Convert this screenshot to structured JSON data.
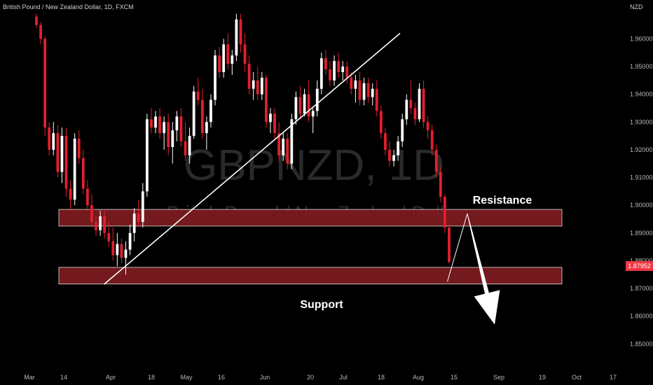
{
  "header": {
    "symbol_line": "British Pound / New Zealand Dollar, 1D, FXCM",
    "currency": "NZD"
  },
  "watermark": {
    "ticker": "GBPNZD, 1D",
    "name": "British Pound / New Zealand Dollar"
  },
  "last_price": "1.87952",
  "colors": {
    "background": "#000000",
    "up_candle": "#ffffff",
    "down_candle": "#e3202d",
    "zone_fill": "#7a1a1f",
    "zone_border": "#e0e0e0",
    "trendline": "#ffffff",
    "axis_text": "#b8b8b8",
    "price_tag": "#f23645"
  },
  "annotations": {
    "resistance_label": "Resistance",
    "support_label": "Support"
  },
  "chart_data": {
    "type": "candlestick",
    "y_axis": {
      "ticks": [
        "1.96000",
        "1.95000",
        "1.94000",
        "1.93000",
        "1.92000",
        "1.91000",
        "1.90000",
        "1.89000",
        "1.88000",
        "1.87000",
        "1.86000",
        "1.85000"
      ],
      "range": [
        1.842,
        1.974
      ]
    },
    "x_axis": {
      "ticks": [
        "Mar",
        "14",
        "Apr",
        "18",
        "May",
        "16",
        "Jun",
        "20",
        "Jul",
        "18",
        "Aug",
        "15",
        "Sep",
        "19",
        "Oct",
        "17"
      ],
      "range_days": [
        "2023-03-01",
        "2023-10-23"
      ]
    },
    "zones": [
      {
        "label": "Resistance",
        "low": 1.8925,
        "high": 1.8985
      },
      {
        "label": "Support",
        "low": 1.8716,
        "high": 1.8776
      }
    ],
    "trendline": {
      "from": [
        "2023-03-31",
        1.8715
      ],
      "to": [
        "2023-07-28",
        1.962
      ]
    },
    "projection": {
      "path": [
        [
          "2023-08-16",
          1.8725
        ],
        [
          "2023-08-24",
          1.897
        ],
        [
          "2023-09-04",
          1.857
        ]
      ],
      "ends_with_arrow": true
    },
    "candles": [
      [
        1.968,
        1.969,
        1.964,
        1.965
      ],
      [
        1.965,
        1.966,
        1.958,
        1.96
      ],
      [
        1.96,
        1.961,
        1.925,
        1.928
      ],
      [
        1.928,
        1.93,
        1.918,
        1.92
      ],
      [
        1.92,
        1.93,
        1.918,
        1.926
      ],
      [
        1.926,
        1.929,
        1.91,
        1.912
      ],
      [
        1.912,
        1.928,
        1.908,
        1.925
      ],
      [
        1.925,
        1.928,
        1.903,
        1.906
      ],
      [
        1.906,
        1.909,
        1.898,
        1.902
      ],
      [
        1.902,
        1.926,
        1.9,
        1.924
      ],
      [
        1.924,
        1.927,
        1.915,
        1.917
      ],
      [
        1.917,
        1.92,
        1.904,
        1.906
      ],
      [
        1.906,
        1.909,
        1.898,
        1.9
      ],
      [
        1.9,
        1.904,
        1.892,
        1.894
      ],
      [
        1.894,
        1.896,
        1.889,
        1.891
      ],
      [
        1.891,
        1.898,
        1.889,
        1.896
      ],
      [
        1.896,
        1.898,
        1.888,
        1.89
      ],
      [
        1.89,
        1.894,
        1.885,
        1.887
      ],
      [
        1.887,
        1.892,
        1.88,
        1.882
      ],
      [
        1.882,
        1.89,
        1.878,
        1.886
      ],
      [
        1.886,
        1.888,
        1.879,
        1.881
      ],
      [
        1.881,
        1.887,
        1.875,
        1.884
      ],
      [
        1.884,
        1.893,
        1.882,
        1.89
      ],
      [
        1.89,
        1.899,
        1.887,
        1.897
      ],
      [
        1.897,
        1.902,
        1.892,
        1.894
      ],
      [
        1.894,
        1.908,
        1.892,
        1.905
      ],
      [
        1.905,
        1.933,
        1.903,
        1.931
      ],
      [
        1.931,
        1.935,
        1.926,
        1.928
      ],
      [
        1.928,
        1.934,
        1.926,
        1.932
      ],
      [
        1.932,
        1.935,
        1.924,
        1.926
      ],
      [
        1.926,
        1.932,
        1.92,
        1.93
      ],
      [
        1.93,
        1.933,
        1.918,
        1.921
      ],
      [
        1.921,
        1.93,
        1.915,
        1.927
      ],
      [
        1.927,
        1.934,
        1.923,
        1.932
      ],
      [
        1.932,
        1.935,
        1.921,
        1.923
      ],
      [
        1.923,
        1.93,
        1.916,
        1.918
      ],
      [
        1.918,
        1.928,
        1.915,
        1.925
      ],
      [
        1.925,
        1.943,
        1.924,
        1.941
      ],
      [
        1.941,
        1.946,
        1.936,
        1.938
      ],
      [
        1.938,
        1.942,
        1.924,
        1.926
      ],
      [
        1.926,
        1.932,
        1.92,
        1.93
      ],
      [
        1.93,
        1.94,
        1.928,
        1.938
      ],
      [
        1.938,
        1.956,
        1.936,
        1.954
      ],
      [
        1.954,
        1.957,
        1.946,
        1.948
      ],
      [
        1.948,
        1.96,
        1.946,
        1.958
      ],
      [
        1.958,
        1.962,
        1.949,
        1.951
      ],
      [
        1.951,
        1.956,
        1.947,
        1.954
      ],
      [
        1.954,
        1.969,
        1.952,
        1.967
      ],
      [
        1.967,
        1.969,
        1.955,
        1.958
      ],
      [
        1.958,
        1.962,
        1.948,
        1.951
      ],
      [
        1.951,
        1.954,
        1.94,
        1.942
      ],
      [
        1.942,
        1.948,
        1.938,
        1.945
      ],
      [
        1.945,
        1.95,
        1.938,
        1.94
      ],
      [
        1.94,
        1.948,
        1.938,
        1.946
      ],
      [
        1.946,
        1.947,
        1.928,
        1.93
      ],
      [
        1.93,
        1.935,
        1.926,
        1.933
      ],
      [
        1.933,
        1.935,
        1.924,
        1.926
      ],
      [
        1.926,
        1.93,
        1.916,
        1.918
      ],
      [
        1.918,
        1.926,
        1.916,
        1.924
      ],
      [
        1.924,
        1.926,
        1.913,
        1.915
      ],
      [
        1.915,
        1.933,
        1.913,
        1.931
      ],
      [
        1.931,
        1.941,
        1.929,
        1.939
      ],
      [
        1.939,
        1.943,
        1.931,
        1.933
      ],
      [
        1.933,
        1.942,
        1.932,
        1.94
      ],
      [
        1.94,
        1.945,
        1.93,
        1.932
      ],
      [
        1.932,
        1.935,
        1.926,
        1.934
      ],
      [
        1.934,
        1.945,
        1.932,
        1.942
      ],
      [
        1.942,
        1.955,
        1.94,
        1.953
      ],
      [
        1.953,
        1.956,
        1.947,
        1.949
      ],
      [
        1.949,
        1.952,
        1.943,
        1.945
      ],
      [
        1.945,
        1.954,
        1.943,
        1.952
      ],
      [
        1.952,
        1.955,
        1.946,
        1.948
      ],
      [
        1.948,
        1.952,
        1.945,
        1.95
      ],
      [
        1.95,
        1.952,
        1.944,
        1.946
      ],
      [
        1.946,
        1.948,
        1.94,
        1.942
      ],
      [
        1.942,
        1.947,
        1.937,
        1.945
      ],
      [
        1.945,
        1.948,
        1.936,
        1.938
      ],
      [
        1.938,
        1.946,
        1.936,
        1.944
      ],
      [
        1.944,
        1.946,
        1.937,
        1.939
      ],
      [
        1.939,
        1.944,
        1.936,
        1.942
      ],
      [
        1.942,
        1.945,
        1.932,
        1.934
      ],
      [
        1.934,
        1.936,
        1.924,
        1.926
      ],
      [
        1.926,
        1.928,
        1.918,
        1.92
      ],
      [
        1.92,
        1.923,
        1.914,
        1.916
      ],
      [
        1.916,
        1.92,
        1.914,
        1.918
      ],
      [
        1.918,
        1.925,
        1.916,
        1.923
      ],
      [
        1.923,
        1.933,
        1.921,
        1.931
      ],
      [
        1.931,
        1.94,
        1.929,
        1.938
      ],
      [
        1.938,
        1.945,
        1.933,
        1.935
      ],
      [
        1.935,
        1.937,
        1.929,
        1.931
      ],
      [
        1.931,
        1.944,
        1.93,
        1.942
      ],
      [
        1.942,
        1.945,
        1.928,
        1.93
      ],
      [
        1.93,
        1.932,
        1.924,
        1.927
      ],
      [
        1.927,
        1.929,
        1.918,
        1.92
      ],
      [
        1.92,
        1.922,
        1.91,
        1.912
      ],
      [
        1.912,
        1.914,
        1.901,
        1.903
      ],
      [
        1.903,
        1.904,
        1.89,
        1.892
      ],
      [
        1.892,
        1.893,
        1.879,
        1.8795
      ]
    ]
  }
}
